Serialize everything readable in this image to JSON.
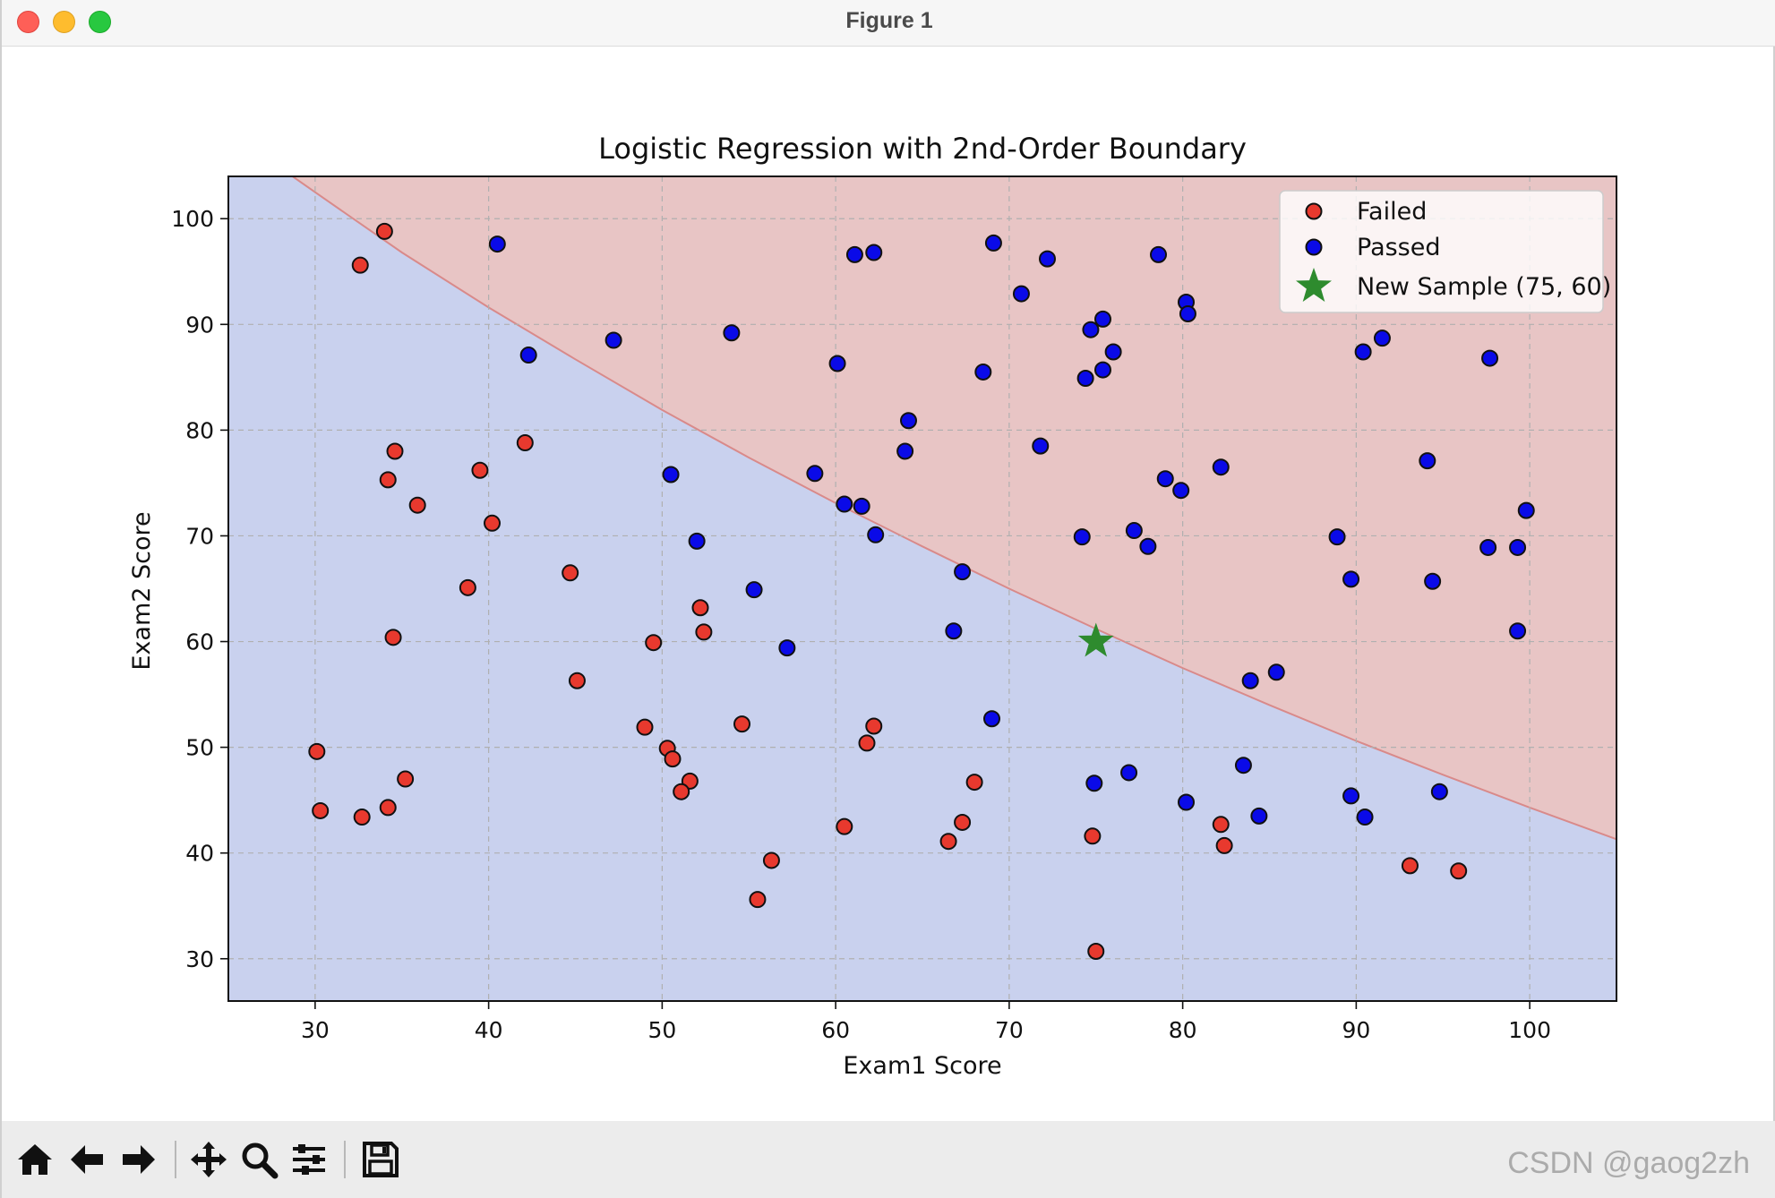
{
  "window": {
    "title": "Figure 1"
  },
  "toolbar": {
    "buttons": [
      {
        "name": "home-icon",
        "tooltip": "Home"
      },
      {
        "name": "back-arrow-icon",
        "tooltip": "Back"
      },
      {
        "name": "forward-arrow-icon",
        "tooltip": "Forward"
      },
      {
        "name": "pan-move-icon",
        "tooltip": "Pan"
      },
      {
        "name": "zoom-magnifier-icon",
        "tooltip": "Zoom"
      },
      {
        "name": "configure-subplots-icon",
        "tooltip": "Subplots"
      },
      {
        "name": "save-disk-icon",
        "tooltip": "Save"
      }
    ]
  },
  "watermark": "CSDN @gaog2zh",
  "chart_data": {
    "type": "scatter",
    "title": "Logistic Regression with 2nd-Order Boundary",
    "xlabel": "Exam1 Score",
    "ylabel": "Exam2 Score",
    "xlim": [
      25,
      105
    ],
    "ylim": [
      26,
      104
    ],
    "xticks": [
      30,
      40,
      50,
      60,
      70,
      80,
      90,
      100
    ],
    "yticks": [
      30,
      40,
      50,
      60,
      70,
      80,
      90,
      100
    ],
    "grid": true,
    "legend_position": "top-right",
    "colors": {
      "failed_fill": "#e8392e",
      "passed_fill": "#0a0ae8",
      "marker_edge": "#111111",
      "new_sample": "#2e8b2e",
      "region_failed": "#c9d1ee",
      "region_passed": "#e8c5c5",
      "boundary": "#d98a8a"
    },
    "decision_boundary": {
      "description": "predicted pass region above curve",
      "points": [
        [
          28.7,
          104
        ],
        [
          30,
          102.5
        ],
        [
          35,
          96.8
        ],
        [
          40,
          91.6
        ],
        [
          45,
          86.7
        ],
        [
          50,
          81.9
        ],
        [
          55,
          77.4
        ],
        [
          60,
          73.1
        ],
        [
          65,
          69.0
        ],
        [
          70,
          65.0
        ],
        [
          75,
          61.2
        ],
        [
          80,
          57.5
        ],
        [
          85,
          54.0
        ],
        [
          90,
          50.6
        ],
        [
          95,
          47.4
        ],
        [
          100,
          44.3
        ],
        [
          105,
          41.3
        ]
      ]
    },
    "series": [
      {
        "name": "Failed",
        "marker": "circle",
        "points": [
          [
            34,
            98.8
          ],
          [
            32.6,
            95.6
          ],
          [
            34.6,
            78
          ],
          [
            42.1,
            78.8
          ],
          [
            39.5,
            76.2
          ],
          [
            34.2,
            75.3
          ],
          [
            35.9,
            72.9
          ],
          [
            40.2,
            71.2
          ],
          [
            44.7,
            66.5
          ],
          [
            38.8,
            65.1
          ],
          [
            52.2,
            63.2
          ],
          [
            52.4,
            60.9
          ],
          [
            34.5,
            60.4
          ],
          [
            49.5,
            59.9
          ],
          [
            45.1,
            56.3
          ],
          [
            54.6,
            52.2
          ],
          [
            62.2,
            52
          ],
          [
            49,
            51.9
          ],
          [
            61.8,
            50.4
          ],
          [
            50.3,
            49.9
          ],
          [
            30.1,
            49.6
          ],
          [
            50.6,
            48.9
          ],
          [
            35.2,
            47
          ],
          [
            51.6,
            46.8
          ],
          [
            68,
            46.7
          ],
          [
            51.1,
            45.8
          ],
          [
            34.2,
            44.3
          ],
          [
            30.3,
            44
          ],
          [
            32.7,
            43.4
          ],
          [
            67.3,
            42.9
          ],
          [
            82.2,
            42.7
          ],
          [
            60.5,
            42.5
          ],
          [
            74.8,
            41.6
          ],
          [
            66.5,
            41.1
          ],
          [
            82.4,
            40.7
          ],
          [
            56.3,
            39.3
          ],
          [
            93.1,
            38.8
          ],
          [
            95.9,
            38.3
          ],
          [
            55.5,
            35.6
          ],
          [
            75,
            30.7
          ]
        ]
      },
      {
        "name": "Passed",
        "marker": "circle",
        "points": [
          [
            69.1,
            97.7
          ],
          [
            40.5,
            97.6
          ],
          [
            62.2,
            96.8
          ],
          [
            61.1,
            96.6
          ],
          [
            78.6,
            96.6
          ],
          [
            72.2,
            96.2
          ],
          [
            70.7,
            92.9
          ],
          [
            80.2,
            92.1
          ],
          [
            80.3,
            91
          ],
          [
            75.4,
            90.5
          ],
          [
            74.7,
            89.5
          ],
          [
            54,
            89.2
          ],
          [
            47.2,
            88.5
          ],
          [
            91.5,
            88.7
          ],
          [
            90.4,
            87.4
          ],
          [
            76,
            87.4
          ],
          [
            42.3,
            87.1
          ],
          [
            97.7,
            86.8
          ],
          [
            60.1,
            86.3
          ],
          [
            75.4,
            85.7
          ],
          [
            68.5,
            85.5
          ],
          [
            74.4,
            84.9
          ],
          [
            64.2,
            80.9
          ],
          [
            71.8,
            78.5
          ],
          [
            64,
            78
          ],
          [
            94.1,
            77.1
          ],
          [
            82.2,
            76.5
          ],
          [
            58.8,
            75.9
          ],
          [
            50.5,
            75.8
          ],
          [
            79,
            75.4
          ],
          [
            79.9,
            74.3
          ],
          [
            60.5,
            73
          ],
          [
            61.5,
            72.8
          ],
          [
            99.8,
            72.4
          ],
          [
            62.3,
            70.1
          ],
          [
            77.2,
            70.5
          ],
          [
            74.2,
            69.9
          ],
          [
            88.9,
            69.9
          ],
          [
            52,
            69.5
          ],
          [
            78,
            69
          ],
          [
            97.6,
            68.9
          ],
          [
            99.3,
            68.9
          ],
          [
            67.3,
            66.6
          ],
          [
            89.7,
            65.9
          ],
          [
            94.4,
            65.7
          ],
          [
            55.3,
            64.9
          ],
          [
            66.8,
            61
          ],
          [
            99.3,
            61
          ],
          [
            57.2,
            59.4
          ],
          [
            85.4,
            57.1
          ],
          [
            83.9,
            56.3
          ],
          [
            69,
            52.7
          ],
          [
            83.5,
            48.3
          ],
          [
            76.9,
            47.6
          ],
          [
            74.9,
            46.6
          ],
          [
            94.8,
            45.8
          ],
          [
            89.7,
            45.4
          ],
          [
            80.2,
            44.8
          ],
          [
            84.4,
            43.5
          ],
          [
            90.5,
            43.4
          ]
        ]
      },
      {
        "name": "New Sample (75, 60)",
        "marker": "star",
        "points": [
          [
            75,
            60
          ]
        ]
      }
    ]
  }
}
